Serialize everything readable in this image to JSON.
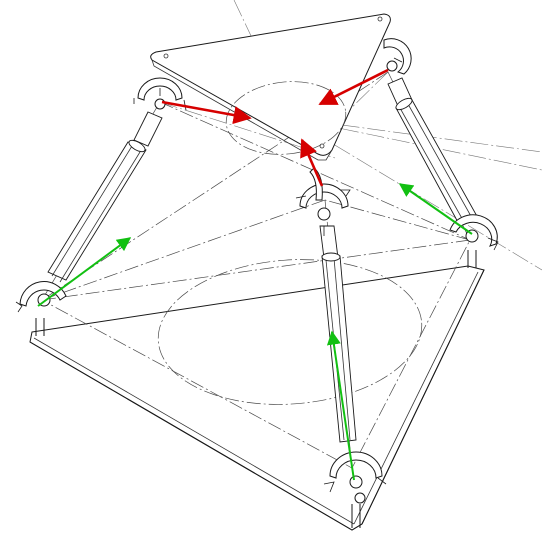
{
  "diagram": {
    "subject": "parallel-mechanism",
    "colors": {
      "line": "#1a1a1a",
      "centerline": "#555555",
      "upper_vector": "#d60000",
      "leg_vector": "#12c012",
      "background": "#ffffff"
    },
    "upper_vectors": 3,
    "leg_vectors": 3
  }
}
